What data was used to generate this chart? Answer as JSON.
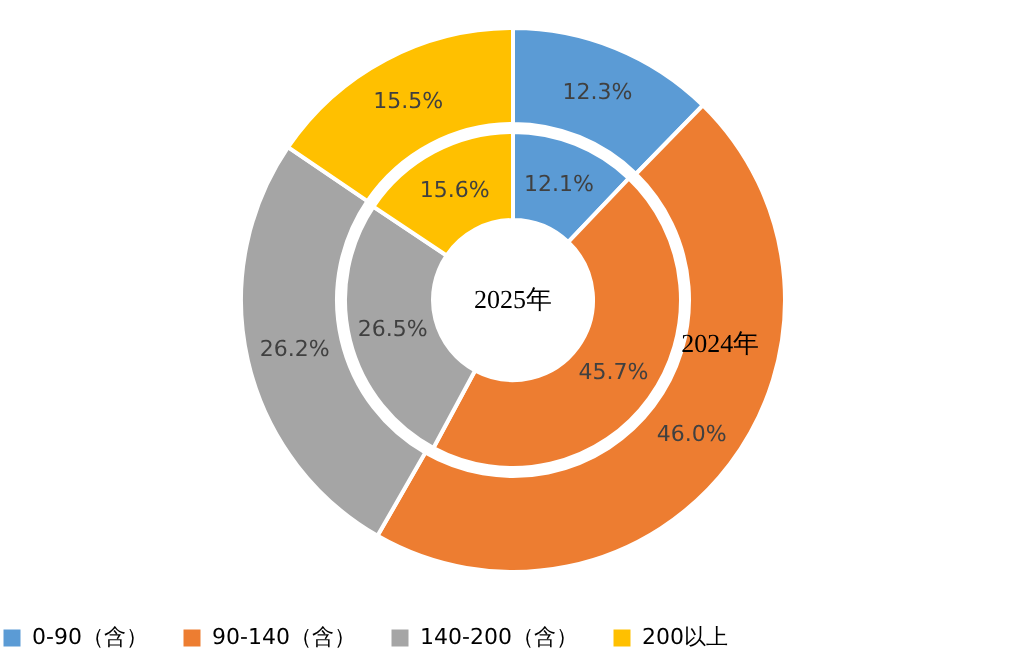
{
  "chart_data": {
    "type": "donut",
    "categories": [
      "0-90（含）",
      "90-140（含）",
      "140-200（含）",
      "200以上"
    ],
    "colors": [
      "#5b9bd5",
      "#ed7d31",
      "#a5a5a5",
      "#ffc000"
    ],
    "series": [
      {
        "name": "2024年",
        "values": [
          12.3,
          46.0,
          26.2,
          15.5
        ],
        "value_labels": [
          "12.3%",
          "46.0%",
          "26.2%",
          "15.5%"
        ]
      },
      {
        "name": "2025年",
        "values": [
          12.1,
          45.7,
          26.5,
          15.6
        ],
        "value_labels": [
          "12.1%",
          "45.7%",
          "26.5%",
          "15.6%"
        ]
      }
    ],
    "legend": "bottom"
  }
}
